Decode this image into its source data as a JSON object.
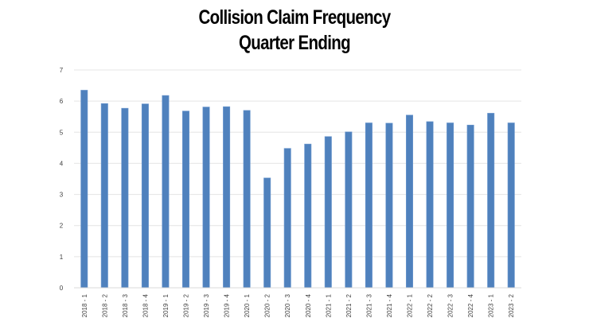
{
  "chart_data": {
    "type": "bar",
    "title": "Collision Claim Frequency",
    "subtitle": "Quarter Ending",
    "xlabel": "",
    "ylabel": "",
    "ylim": [
      0,
      7
    ],
    "yticks": [
      0,
      1,
      2,
      3,
      4,
      5,
      6,
      7
    ],
    "grid": true,
    "legend": null,
    "bar_color": "#4f81bd",
    "gridline_color": "#e4e4e4",
    "categories": [
      "2018 - 1",
      "2018 - 2",
      "2018 - 3",
      "2018 - 4",
      "2019 - 1",
      "2019 - 2",
      "2019 - 3",
      "2019 - 4",
      "2020 - 1",
      "2020 - 2",
      "2020 - 3",
      "2020 - 4",
      "2021 - 1",
      "2021 - 2",
      "2021 - 3",
      "2021 - 4",
      "2022 - 1",
      "2022 - 2",
      "2022 - 3",
      "2022 - 4",
      "2023 - 1",
      "2023 - 2"
    ],
    "values": [
      6.35,
      5.92,
      5.77,
      5.91,
      6.18,
      5.68,
      5.81,
      5.82,
      5.7,
      3.53,
      4.48,
      4.62,
      4.86,
      5.01,
      5.3,
      5.29,
      5.55,
      5.34,
      5.3,
      5.23,
      5.61,
      5.3
    ]
  }
}
